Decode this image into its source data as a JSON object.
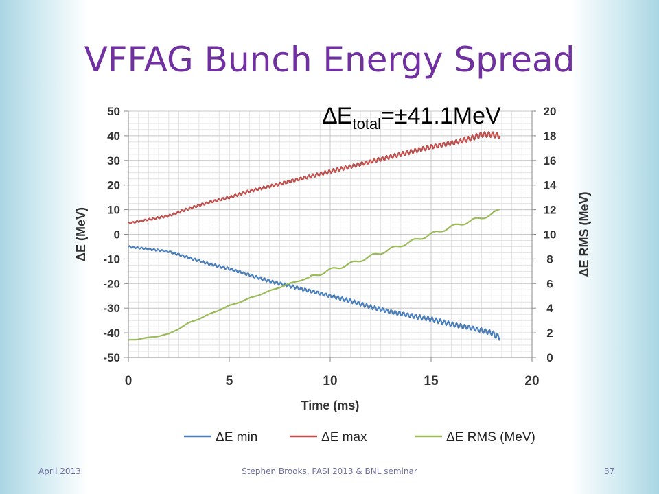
{
  "slide": {
    "title": "VFFAG Bunch Energy Spread",
    "annotation": {
      "prefix": "∆E",
      "subscript": "total",
      "suffix": "=±41.1MeV"
    }
  },
  "footer": {
    "date": "April 2013",
    "center": "Stephen Brooks, PASI 2013 & BNL seminar",
    "page": "37"
  },
  "chart_data": {
    "type": "line",
    "xlabel": "Time (ms)",
    "ylabel": "ΔE (MeV)",
    "y2label": "ΔE RMS (MeV)",
    "xlim": [
      0,
      20
    ],
    "ylim": [
      -50,
      50
    ],
    "y2lim": [
      0,
      20
    ],
    "xticks": [
      0,
      5,
      10,
      15,
      20
    ],
    "yticks": [
      -50,
      -40,
      -30,
      -20,
      -10,
      0,
      10,
      20,
      30,
      40,
      50
    ],
    "y2ticks": [
      0,
      2,
      4,
      6,
      8,
      10,
      12,
      14,
      16,
      18,
      20
    ],
    "grid": true,
    "legend": "bottom",
    "series": [
      {
        "name": "ΔE min",
        "axis": "left",
        "color": "#4a7ebb",
        "x": [
          0,
          1,
          2,
          3,
          4,
          5,
          6,
          7,
          8,
          9,
          10,
          11,
          12,
          13,
          14,
          15,
          16,
          17,
          18,
          18.4
        ],
        "y": [
          -5,
          -6,
          -7,
          -9.5,
          -12,
          -14,
          -16.5,
          -19,
          -21,
          -23,
          -25,
          -27,
          -29.5,
          -31.5,
          -33,
          -34.5,
          -36.5,
          -38,
          -40,
          -42
        ]
      },
      {
        "name": "ΔE max",
        "axis": "left",
        "color": "#c0504d",
        "x": [
          0,
          1,
          2,
          3,
          4,
          5,
          6,
          7,
          8,
          9,
          10,
          11,
          12,
          13,
          14,
          15,
          16,
          17,
          17.5,
          18,
          18.4
        ],
        "y": [
          4.5,
          6,
          7.5,
          10.5,
          13,
          15,
          17.5,
          19.5,
          21.5,
          23.5,
          25.5,
          27.5,
          29.5,
          31.5,
          33.5,
          35.5,
          37,
          39,
          40.5,
          40.5,
          40
        ]
      },
      {
        "name": "ΔE RMS (MeV)",
        "axis": "right",
        "color": "#9bbb59",
        "x": [
          0,
          1,
          2,
          3,
          4,
          5,
          6,
          7,
          8,
          9,
          10,
          11,
          12,
          13,
          14,
          15,
          16,
          17,
          18,
          18.4
        ],
        "y": [
          1.4,
          1.6,
          1.9,
          2.8,
          3.5,
          4.2,
          4.8,
          5.4,
          6.0,
          6.5,
          7.1,
          7.6,
          8.2,
          8.8,
          9.4,
          10.0,
          10.6,
          11.1,
          11.6,
          12.0
        ]
      }
    ]
  }
}
